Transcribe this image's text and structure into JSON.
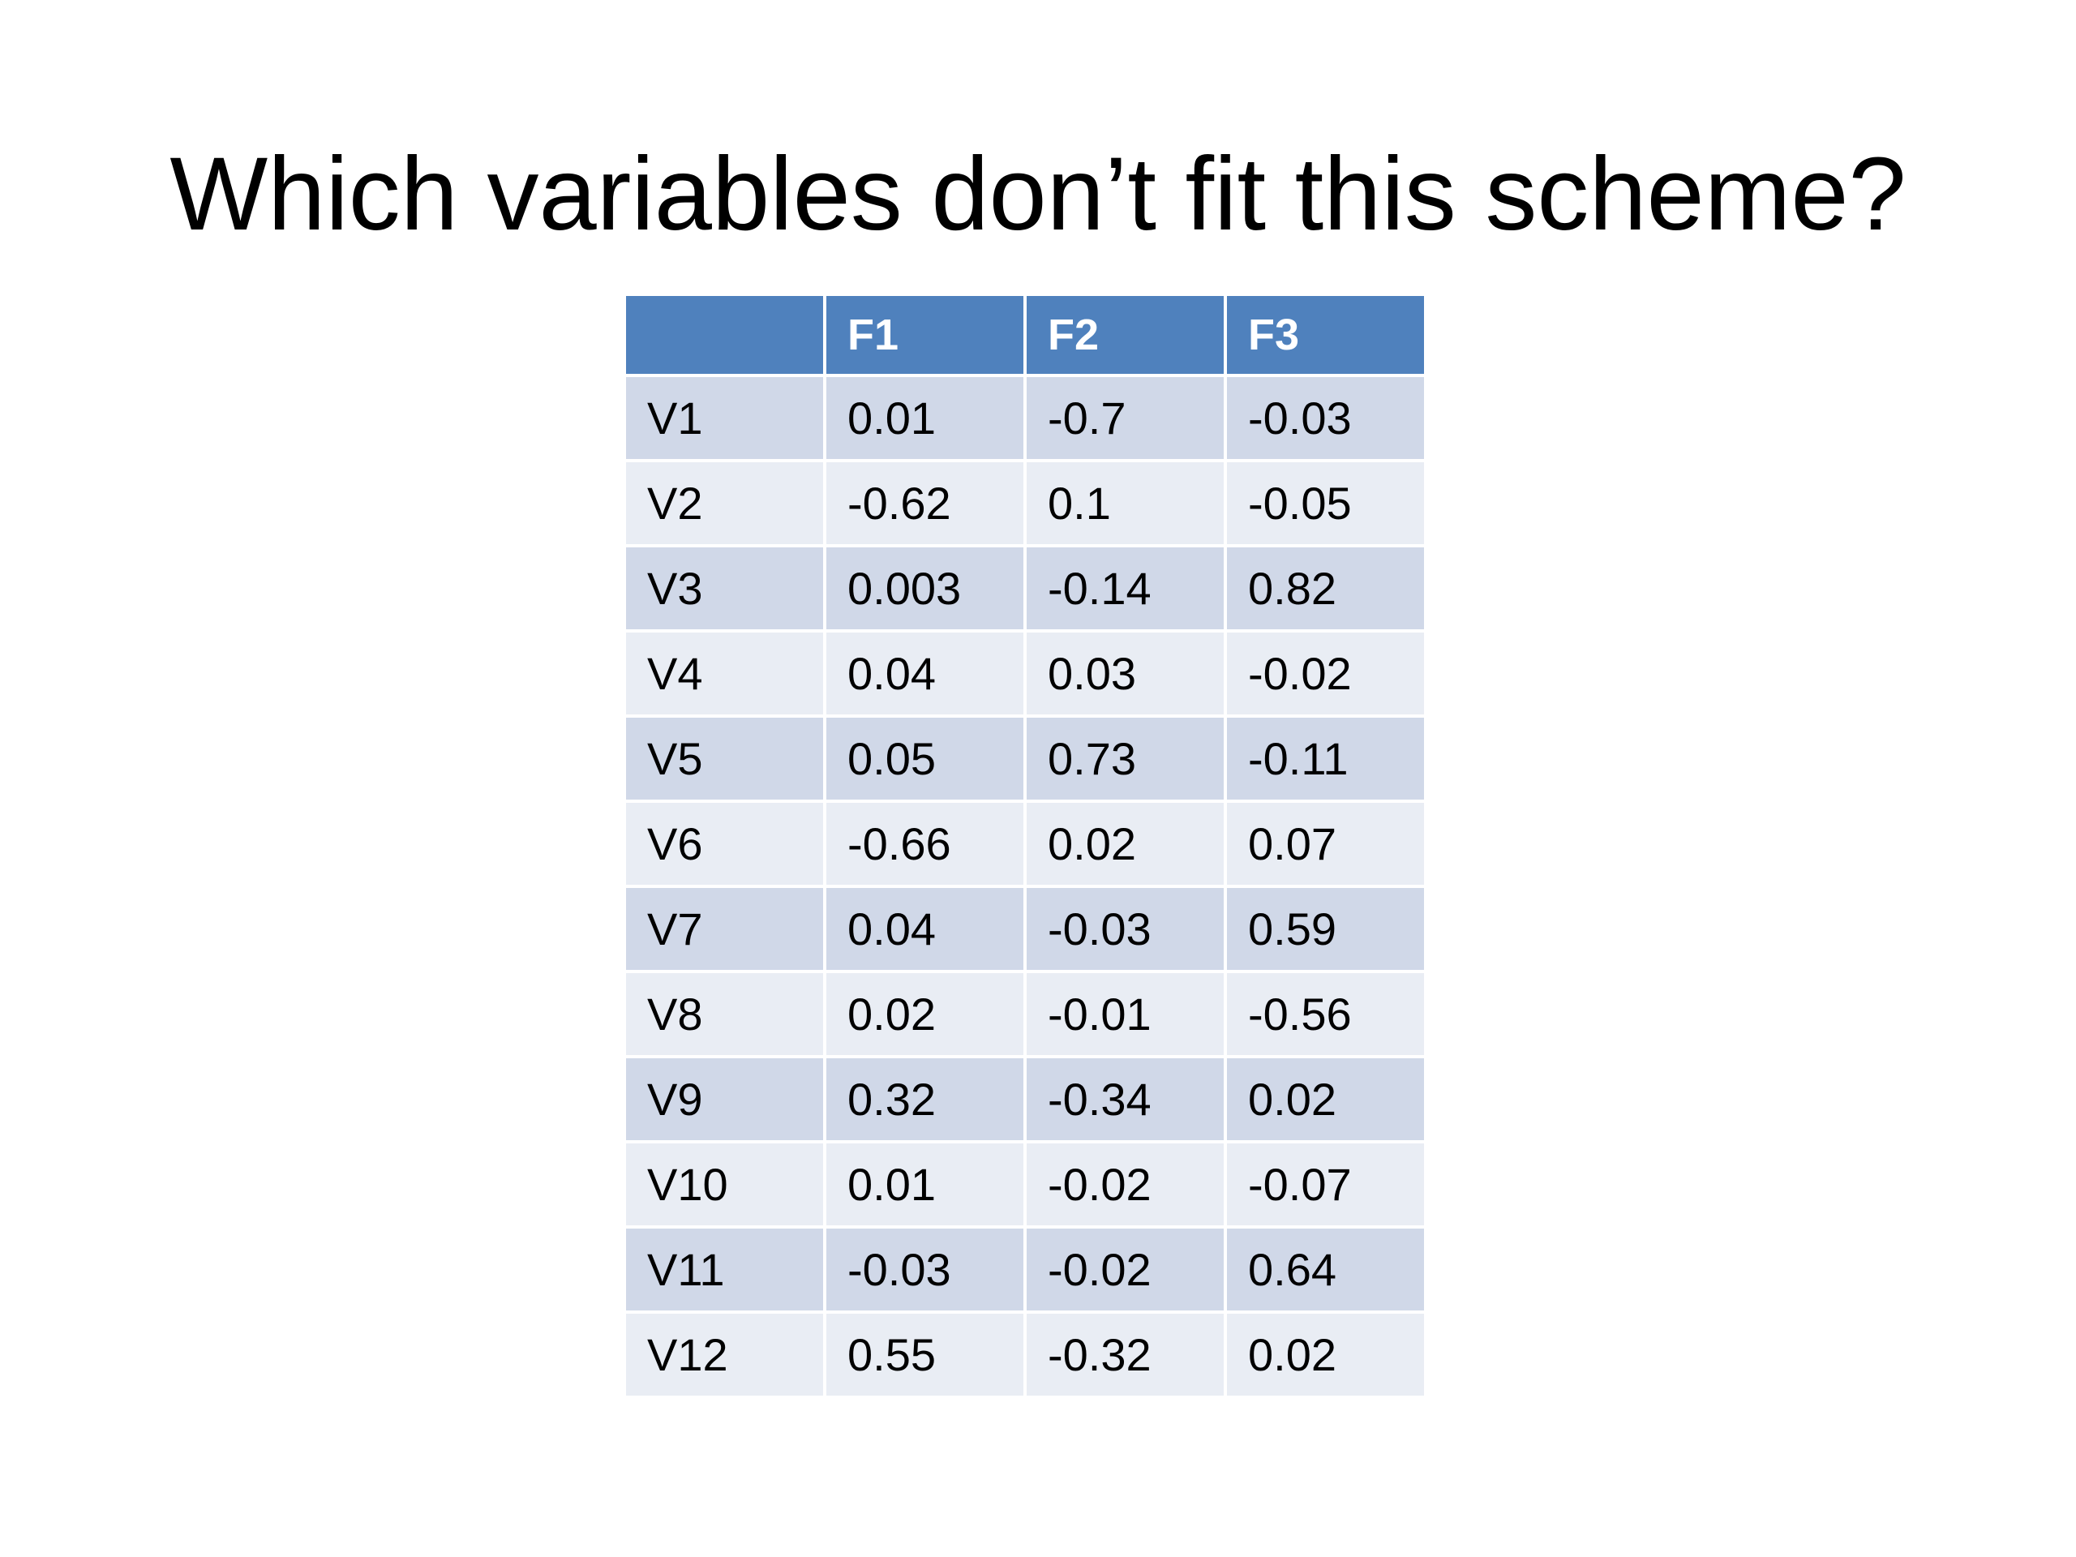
{
  "title": "Which variables don’t fit this scheme?",
  "table": {
    "headers": [
      "",
      "F1",
      "F2",
      "F3"
    ],
    "rows": [
      [
        "V1",
        "0.01",
        "-0.7",
        "-0.03"
      ],
      [
        "V2",
        "-0.62",
        "0.1",
        "-0.05"
      ],
      [
        "V3",
        "0.003",
        "-0.14",
        "0.82"
      ],
      [
        "V4",
        "0.04",
        "0.03",
        "-0.02"
      ],
      [
        "V5",
        "0.05",
        "0.73",
        "-0.11"
      ],
      [
        "V6",
        "-0.66",
        "0.02",
        "0.07"
      ],
      [
        "V7",
        "0.04",
        "-0.03",
        "0.59"
      ],
      [
        "V8",
        "0.02",
        "-0.01",
        "-0.56"
      ],
      [
        "V9",
        "0.32",
        "-0.34",
        "0.02"
      ],
      [
        "V10",
        "0.01",
        "-0.02",
        "-0.07"
      ],
      [
        "V11",
        "-0.03",
        "-0.02",
        "0.64"
      ],
      [
        "V12",
        "0.55",
        "-0.32",
        "0.02"
      ]
    ]
  },
  "colors": {
    "header_bg": "#4f81bd",
    "row_band_dark": "#d0d8e8",
    "row_band_light": "#e9edf4"
  }
}
